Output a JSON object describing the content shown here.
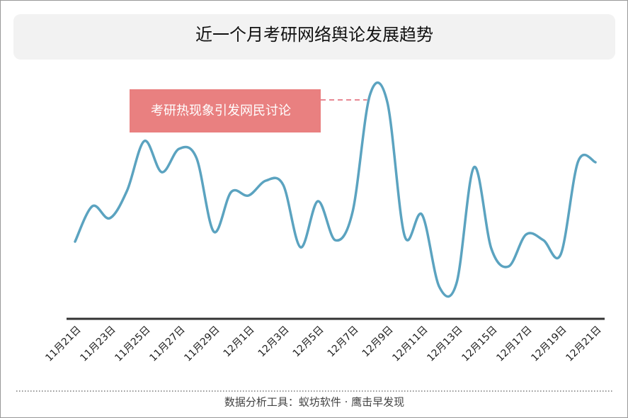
{
  "chart_data": {
    "type": "line",
    "title": "近一个月考研网络舆论发展趋势",
    "annotation": {
      "text": "考研热现象引发网民讨论",
      "index": 17
    },
    "categories": [
      "11月21日",
      null,
      "11月23日",
      null,
      "11月25日",
      null,
      "11月27日",
      null,
      "11月29日",
      null,
      "12月1日",
      null,
      "12月3日",
      null,
      "12月5日",
      null,
      "12月7日",
      null,
      "12月9日",
      null,
      "12月11日",
      null,
      "12月13日",
      null,
      "12月15日",
      null,
      "12月17日",
      null,
      "12月19日",
      null,
      "12月21日"
    ],
    "values": [
      109,
      159,
      142,
      181,
      251,
      207,
      240,
      227,
      123,
      179,
      174,
      195,
      189,
      101,
      166,
      111,
      151,
      316,
      306,
      117,
      147,
      45,
      51,
      214,
      99,
      74,
      119,
      111,
      91,
      222,
      221
    ],
    "color": "#5ba3c0",
    "ylim": [
      0,
      350
    ]
  },
  "footer": "数据分析工具：蚁坊软件 · 鹰击早发现"
}
